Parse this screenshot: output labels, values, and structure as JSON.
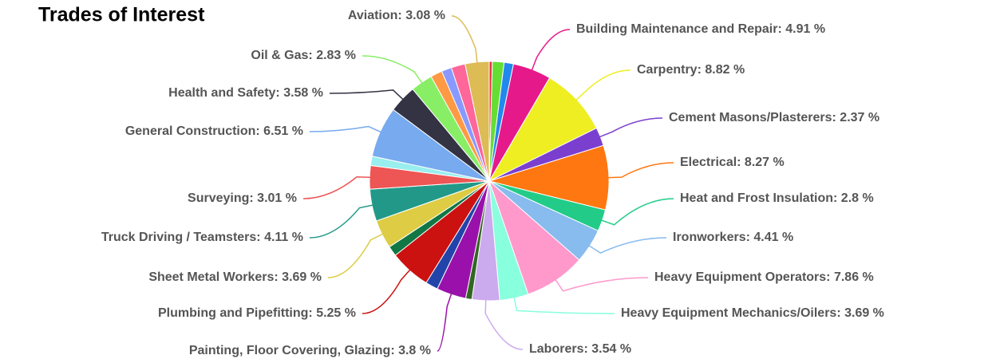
{
  "chart_data": {
    "type": "pie",
    "title": "Trades of Interest",
    "values": [
      0.4,
      1.5,
      1.2,
      4.91,
      8.82,
      2.37,
      8.27,
      2.8,
      4.41,
      7.86,
      3.69,
      3.54,
      0.8,
      3.8,
      1.6,
      5.25,
      1.3,
      3.69,
      4.11,
      3.01,
      1.2,
      6.51,
      3.58,
      2.83,
      1.5,
      1.3,
      1.8,
      3.08
    ],
    "value_labels": [
      null,
      null,
      null,
      "Building Maintenance and Repair: 4.91 %",
      "Carpentry: 8.82 %",
      "Cement Masons/Plasterers: 2.37 %",
      "Electrical: 8.27 %",
      "Heat and Frost Insulation: 2.8 %",
      "Ironworkers: 4.41 %",
      "Heavy Equipment Operators: 7.86 %",
      "Heavy Equipment Mechanics/Oilers: 3.69 %",
      "Laborers: 3.54 %",
      null,
      "Painting, Floor Covering, Glazing: 3.8 %",
      null,
      "Plumbing and Pipefitting: 5.25 %",
      null,
      "Sheet Metal Workers: 3.69 %",
      "Truck Driving / Teamsters: 4.11 %",
      "Surveying: 3.01 %",
      null,
      "General Construction: 6.51 %",
      "Health and Safety: 3.58 %",
      "Oil & Gas: 2.83 %",
      null,
      null,
      null,
      "Aviation: 3.08 %"
    ],
    "colors": [
      "#e8334a",
      "#66dd33",
      "#2288ee",
      "#e6198a",
      "#eeee22",
      "#7b3fd0",
      "#ff7711",
      "#22cc88",
      "#88bbee",
      "#ff99cc",
      "#88ffdd",
      "#ccaaee",
      "#336622",
      "#9911aa",
      "#2244aa",
      "#cc1111",
      "#117744",
      "#ddcc44",
      "#229988",
      "#ee5555",
      "#99eeee",
      "#77aaee",
      "#333344",
      "#88ee66",
      "#ff9944",
      "#8899ff",
      "#ff6699",
      "#ddbb55"
    ]
  }
}
